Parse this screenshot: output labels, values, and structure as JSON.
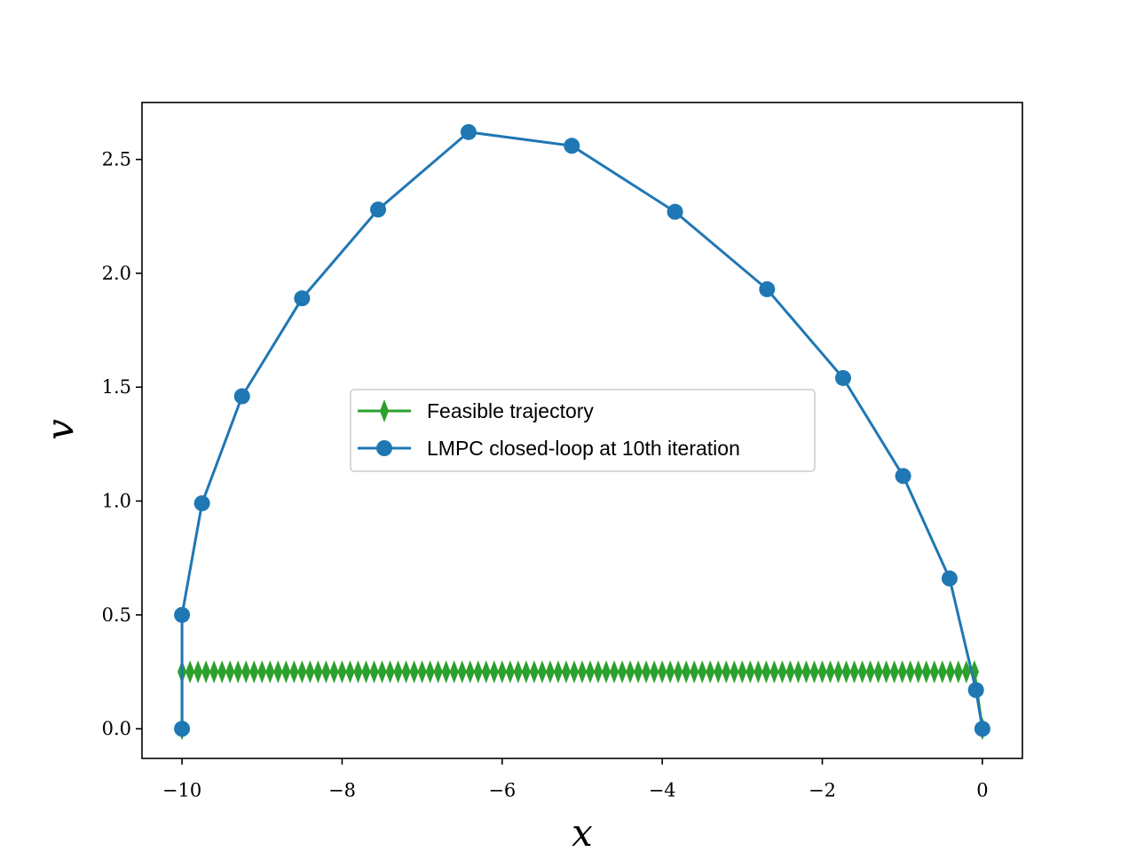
{
  "chart_data": {
    "type": "line",
    "title": "",
    "xlabel": "x",
    "ylabel": "v",
    "xlim": [
      -10.5,
      0.5
    ],
    "ylim": [
      -0.13,
      2.75
    ],
    "xticks": [
      -10,
      -8,
      -6,
      -4,
      -2,
      0
    ],
    "xtick_labels": [
      "−10",
      "−8",
      "−6",
      "−4",
      "−2",
      "0"
    ],
    "yticks": [
      0.0,
      0.5,
      1.0,
      1.5,
      2.0,
      2.5
    ],
    "ytick_labels": [
      "0.0",
      "0.5",
      "1.0",
      "1.5",
      "2.0",
      "2.5"
    ],
    "grid": false,
    "legend_position": "center",
    "series": [
      {
        "name": "Feasible trajectory",
        "color": "#2ca02c",
        "marker": "thin_diamond",
        "segments": [
          {
            "x": [
              -10,
              -10
            ],
            "y": [
              0.0,
              0.25
            ]
          },
          {
            "x_start": -10,
            "x_end": -0.1,
            "count": 100,
            "y": 0.25
          },
          {
            "x": [
              -0.1,
              0
            ],
            "y": [
              0.25,
              0.0
            ]
          }
        ]
      },
      {
        "name": "LMPC closed-loop at 10th iteration",
        "color": "#1f77b4",
        "marker": "circle",
        "x": [
          -10,
          -10,
          -9.75,
          -9.25,
          -8.5,
          -7.55,
          -6.42,
          -5.13,
          -3.84,
          -2.69,
          -1.74,
          -0.99,
          -0.41,
          -0.08,
          0
        ],
        "y": [
          0.0,
          0.5,
          0.99,
          1.46,
          1.89,
          2.28,
          2.62,
          2.56,
          2.27,
          1.93,
          1.54,
          1.11,
          0.66,
          0.17,
          0.0
        ]
      }
    ]
  }
}
